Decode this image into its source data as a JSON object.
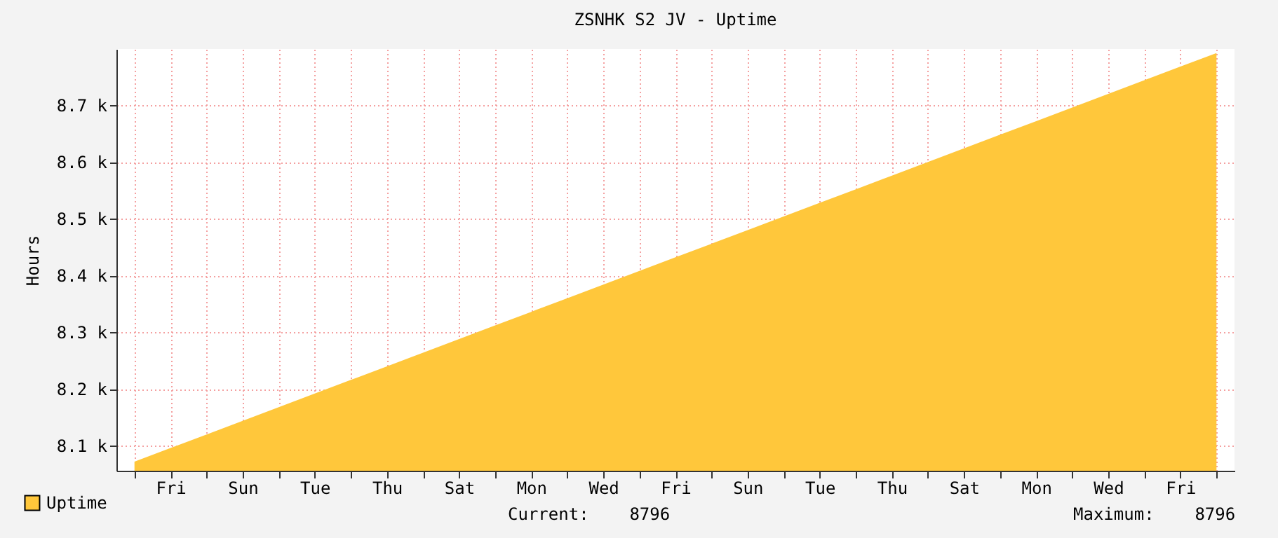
{
  "chart_data": {
    "type": "area",
    "title": "ZSNHK S2 JV - Uptime",
    "ylabel": "Hours",
    "categories": [
      null,
      "Fri",
      null,
      "Sun",
      null,
      "Tue",
      null,
      "Thu",
      null,
      "Sat",
      null,
      "Mon",
      null,
      "Wed",
      null,
      "Fri",
      null,
      "Sun",
      null,
      "Tue",
      null,
      "Thu",
      null,
      "Sat",
      null,
      "Mon",
      null,
      "Wed",
      null,
      "Fri",
      null
    ],
    "series": [
      {
        "name": "Uptime",
        "color": "#ffc73b",
        "values": [
          8072,
          8096,
          8120,
          8144,
          8168,
          8192,
          8216,
          8240,
          8264,
          8288,
          8312,
          8336,
          8360,
          8384,
          8408,
          8432,
          8456,
          8480,
          8504,
          8528,
          8552,
          8576,
          8600,
          8624,
          8648,
          8672,
          8696,
          8720,
          8744,
          8768,
          8792
        ]
      }
    ],
    "ylim": [
      8056,
      8799
    ],
    "yticks": [
      {
        "value": 8100,
        "label": "8.1 k"
      },
      {
        "value": 8200,
        "label": "8.2 k"
      },
      {
        "value": 8300,
        "label": "8.3 k"
      },
      {
        "value": 8400,
        "label": "8.4 k"
      },
      {
        "value": 8500,
        "label": "8.5 k"
      },
      {
        "value": 8600,
        "label": "8.6 k"
      },
      {
        "value": 8700,
        "label": "8.7 k"
      }
    ],
    "grid": true,
    "legend": "bottom left",
    "annotations": [
      "Current:    8796",
      "Maximum:    8796"
    ]
  }
}
